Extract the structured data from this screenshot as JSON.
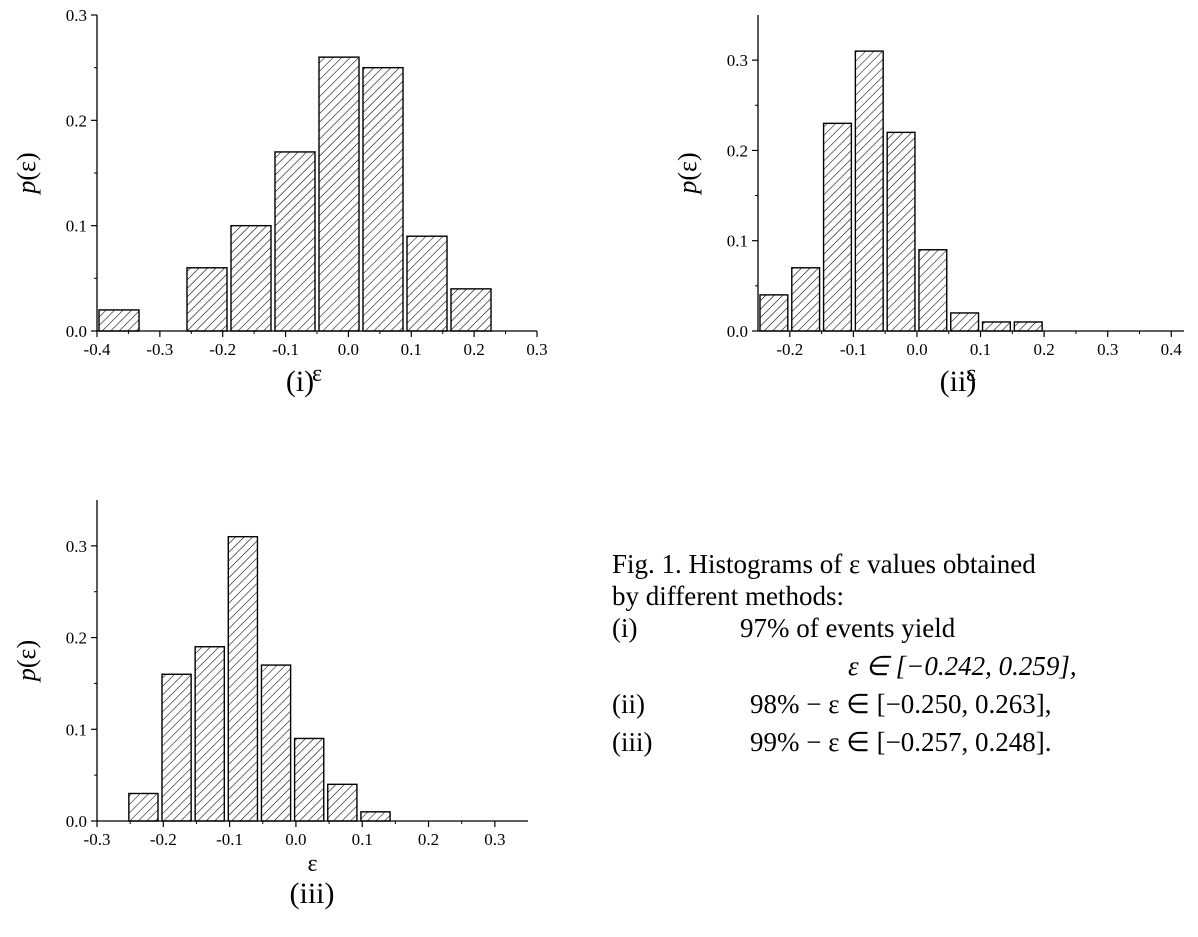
{
  "charts_meta": {
    "panels": [
      {
        "label": "(i)"
      },
      {
        "label": "(ii)"
      },
      {
        "label": "(iii)"
      }
    ]
  },
  "chart_data": [
    {
      "type": "bar",
      "panel": "(i)",
      "xlabel": "ε",
      "ylabel": "p(ε)",
      "xlim": [
        -0.4,
        0.3
      ],
      "ylim": [
        0.0,
        0.3
      ],
      "xticks": [
        "-0.4",
        "-0.3",
        "-0.2",
        "-0.1",
        "0.0",
        "0.1",
        "0.2",
        "0.3"
      ],
      "yticks": [
        "0.0",
        "0.1",
        "0.2",
        "0.3"
      ],
      "bins": [
        {
          "x0": -0.4,
          "x1": -0.33,
          "value": 0.02
        },
        {
          "x0": -0.26,
          "x1": -0.19,
          "value": 0.06
        },
        {
          "x0": -0.19,
          "x1": -0.12,
          "value": 0.1
        },
        {
          "x0": -0.12,
          "x1": -0.05,
          "value": 0.17
        },
        {
          "x0": -0.05,
          "x1": 0.02,
          "value": 0.26
        },
        {
          "x0": 0.02,
          "x1": 0.09,
          "value": 0.25
        },
        {
          "x0": 0.09,
          "x1": 0.16,
          "value": 0.09
        },
        {
          "x0": 0.16,
          "x1": 0.23,
          "value": 0.04
        }
      ]
    },
    {
      "type": "bar",
      "panel": "(ii)",
      "xlabel": "ε",
      "ylabel": "p(ε)",
      "xlim": [
        -0.25,
        0.42
      ],
      "ylim": [
        0.0,
        0.35
      ],
      "xticks": [
        "-0.2",
        "-0.1",
        "0.0",
        "0.1",
        "0.2",
        "0.3",
        "0.4"
      ],
      "yticks": [
        "0.0",
        "0.1",
        "0.2",
        "0.3"
      ],
      "bins": [
        {
          "x0": -0.25,
          "x1": -0.2,
          "value": 0.04
        },
        {
          "x0": -0.2,
          "x1": -0.15,
          "value": 0.07
        },
        {
          "x0": -0.15,
          "x1": -0.1,
          "value": 0.23
        },
        {
          "x0": -0.1,
          "x1": -0.05,
          "value": 0.31
        },
        {
          "x0": -0.05,
          "x1": 0.0,
          "value": 0.22
        },
        {
          "x0": 0.0,
          "x1": 0.05,
          "value": 0.09
        },
        {
          "x0": 0.05,
          "x1": 0.1,
          "value": 0.02
        },
        {
          "x0": 0.1,
          "x1": 0.15,
          "value": 0.01
        },
        {
          "x0": 0.15,
          "x1": 0.2,
          "value": 0.01
        }
      ]
    },
    {
      "type": "bar",
      "panel": "(iii)",
      "xlabel": "ε",
      "ylabel": "p(ε)",
      "xlim": [
        -0.3,
        0.35
      ],
      "ylim": [
        0.0,
        0.35
      ],
      "xticks": [
        "-0.3",
        "-0.2",
        "-0.1",
        "0.0",
        "0.1",
        "0.2",
        "0.3"
      ],
      "yticks": [
        "0.0",
        "0.1",
        "0.2",
        "0.3"
      ],
      "bins": [
        {
          "x0": -0.255,
          "x1": -0.205,
          "value": 0.03
        },
        {
          "x0": -0.205,
          "x1": -0.155,
          "value": 0.16
        },
        {
          "x0": -0.155,
          "x1": -0.105,
          "value": 0.19
        },
        {
          "x0": -0.105,
          "x1": -0.055,
          "value": 0.31
        },
        {
          "x0": -0.055,
          "x1": -0.005,
          "value": 0.17
        },
        {
          "x0": -0.005,
          "x1": 0.045,
          "value": 0.09
        },
        {
          "x0": 0.045,
          "x1": 0.095,
          "value": 0.04
        },
        {
          "x0": 0.095,
          "x1": 0.145,
          "value": 0.01
        }
      ]
    }
  ],
  "caption": {
    "line1": "Fig. 1. Histograms of ε values obtained",
    "line2": "by different methods:",
    "items": [
      {
        "num": "(i)",
        "text": "97% of events yield",
        "math": "ε ∈ [−0.242, 0.259],"
      },
      {
        "num": "(ii)",
        "text": "98% − ε ∈ [−0.250, 0.263],"
      },
      {
        "num": "(iii)",
        "text": "99% − ε ∈ [−0.257, 0.248]."
      }
    ]
  }
}
